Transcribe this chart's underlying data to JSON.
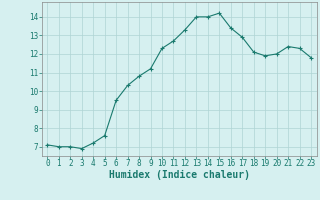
{
  "x": [
    0,
    1,
    2,
    3,
    4,
    5,
    6,
    7,
    8,
    9,
    10,
    11,
    12,
    13,
    14,
    15,
    16,
    17,
    18,
    19,
    20,
    21,
    22,
    23
  ],
  "y": [
    7.1,
    7.0,
    7.0,
    6.9,
    7.2,
    7.6,
    9.5,
    10.3,
    10.8,
    11.2,
    12.3,
    12.7,
    13.3,
    14.0,
    14.0,
    14.2,
    13.4,
    12.9,
    12.1,
    11.9,
    12.0,
    12.4,
    12.3,
    11.8
  ],
  "xlabel": "Humidex (Indice chaleur)",
  "xlim": [
    -0.5,
    23.5
  ],
  "ylim": [
    6.5,
    14.8
  ],
  "yticks": [
    7,
    8,
    9,
    10,
    11,
    12,
    13,
    14
  ],
  "xticks": [
    0,
    1,
    2,
    3,
    4,
    5,
    6,
    7,
    8,
    9,
    10,
    11,
    12,
    13,
    14,
    15,
    16,
    17,
    18,
    19,
    20,
    21,
    22,
    23
  ],
  "line_color": "#1a7a6e",
  "marker": "+",
  "background_color": "#d6f0f0",
  "grid_color": "#afd4d4",
  "tick_label_fontsize": 5.5,
  "xlabel_fontsize": 7.0
}
